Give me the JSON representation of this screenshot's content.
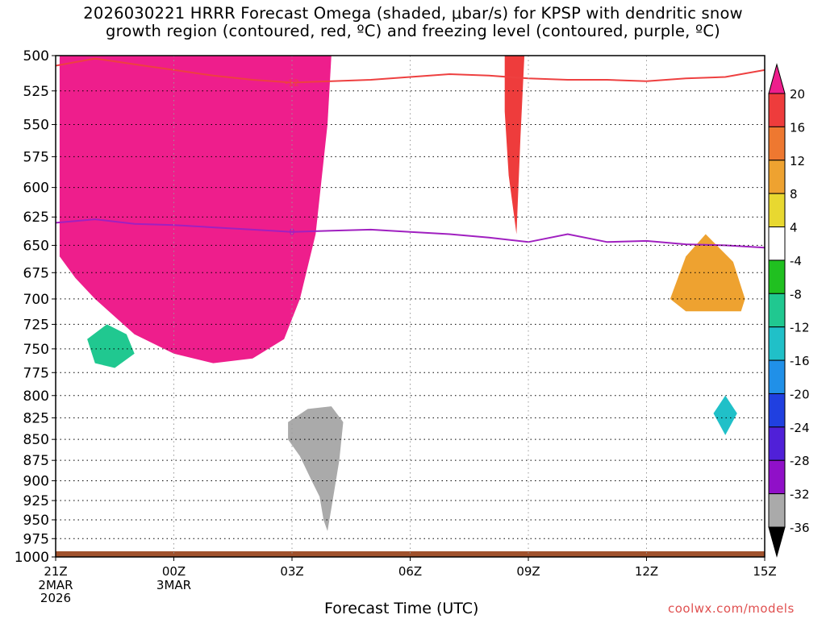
{
  "title_line1": "2026030221 HRRR Forecast Omega (shaded, μbar/s) for KPSP with dendritic snow",
  "title_line2": "growth region (contoured, red, ºC) and freezing level (contoured, purple, ºC)",
  "credit": "coolwx.com/models",
  "chart_data": {
    "type": "heatmap",
    "xlabel": "Forecast Time (UTC)",
    "ylabel": "",
    "x_ticks": [
      {
        "hour": 0,
        "label": "21Z",
        "sub": [
          "2MAR",
          "2026"
        ]
      },
      {
        "hour": 3,
        "label": "00Z",
        "sub": [
          "3MAR"
        ]
      },
      {
        "hour": 6,
        "label": "03Z",
        "sub": []
      },
      {
        "hour": 9,
        "label": "06Z",
        "sub": []
      },
      {
        "hour": 12,
        "label": "09Z",
        "sub": []
      },
      {
        "hour": 15,
        "label": "12Z",
        "sub": []
      },
      {
        "hour": 18,
        "label": "15Z",
        "sub": []
      }
    ],
    "xlim": [
      0,
      18
    ],
    "y_ticks": [
      500,
      525,
      550,
      575,
      600,
      625,
      650,
      675,
      700,
      725,
      750,
      775,
      800,
      825,
      850,
      875,
      900,
      925,
      950,
      975,
      1000
    ],
    "ylim": [
      500,
      1000
    ],
    "y_scale": "log-pressure",
    "grid": true,
    "colorbar": {
      "labels": [
        20,
        16,
        12,
        8,
        4,
        -4,
        -8,
        -12,
        -16,
        -20,
        -24,
        -28,
        -32,
        -36
      ],
      "colors": [
        "#ee1e8c",
        "#ee3c3c",
        "#ee7830",
        "#eea230",
        "#e8d830",
        "#ffffff",
        "#20c020",
        "#20c890",
        "#20c0c8",
        "#2090e8",
        "#2040e0",
        "#5020d8",
        "#9010c8",
        "#aaaaaa",
        "#000000"
      ]
    },
    "contours": [
      {
        "name": "-12",
        "color": "#ee4040",
        "points": [
          [
            0,
            507
          ],
          [
            1,
            502
          ],
          [
            2,
            506
          ],
          [
            3,
            510
          ],
          [
            4,
            514
          ],
          [
            5,
            517
          ],
          [
            6,
            519
          ],
          [
            7,
            518
          ],
          [
            8,
            517
          ],
          [
            9,
            515
          ],
          [
            10,
            513
          ],
          [
            11,
            514
          ],
          [
            12,
            516
          ],
          [
            13,
            517
          ],
          [
            14,
            517
          ],
          [
            15,
            518
          ],
          [
            16,
            516
          ],
          [
            17,
            515
          ],
          [
            18,
            510
          ]
        ]
      },
      {
        "name": "0",
        "color": "#a020c0",
        "points": [
          [
            0,
            630
          ],
          [
            1,
            627
          ],
          [
            2,
            631
          ],
          [
            3,
            632
          ],
          [
            4,
            634
          ],
          [
            5,
            636
          ],
          [
            6,
            638
          ],
          [
            7,
            637
          ],
          [
            8,
            636
          ],
          [
            9,
            638
          ],
          [
            10,
            640
          ],
          [
            11,
            643
          ],
          [
            12,
            647
          ],
          [
            13,
            640
          ],
          [
            14,
            647
          ],
          [
            15,
            646
          ],
          [
            16,
            649
          ],
          [
            17,
            650
          ],
          [
            18,
            652
          ]
        ]
      }
    ],
    "field_regions": [
      {
        "value": 20,
        "points": [
          [
            0.1,
            500
          ],
          [
            7,
            500
          ],
          [
            6.9,
            550
          ],
          [
            6.6,
            640
          ],
          [
            6.2,
            700
          ],
          [
            5.8,
            740
          ],
          [
            5,
            760
          ],
          [
            4,
            765
          ],
          [
            3,
            755
          ],
          [
            2,
            735
          ],
          [
            1,
            700
          ],
          [
            0.5,
            680
          ],
          [
            0.1,
            660
          ]
        ]
      },
      {
        "value": 16,
        "points": [
          [
            11.4,
            500
          ],
          [
            11.9,
            500
          ],
          [
            11.8,
            560
          ],
          [
            11.7,
            640
          ],
          [
            11.5,
            590
          ],
          [
            11.4,
            540
          ]
        ]
      },
      {
        "value": 8,
        "points": [
          [
            15.6,
            700
          ],
          [
            16,
            660
          ],
          [
            16.5,
            640
          ],
          [
            17.2,
            665
          ],
          [
            17.5,
            700
          ],
          [
            17.4,
            712
          ],
          [
            16,
            712
          ]
        ]
      },
      {
        "value": -12,
        "points": [
          [
            0.8,
            740
          ],
          [
            1.3,
            725
          ],
          [
            1.8,
            735
          ],
          [
            2,
            755
          ],
          [
            1.5,
            770
          ],
          [
            1,
            765
          ]
        ]
      },
      {
        "value": -16,
        "points": [
          [
            16.7,
            820
          ],
          [
            17,
            800
          ],
          [
            17.3,
            820
          ],
          [
            17,
            845
          ]
        ]
      },
      {
        "value": -36,
        "points": [
          [
            5.9,
            830
          ],
          [
            6.4,
            815
          ],
          [
            7,
            812
          ],
          [
            7.3,
            830
          ],
          [
            7.2,
            875
          ],
          [
            7,
            935
          ],
          [
            6.9,
            965
          ],
          [
            6.8,
            950
          ],
          [
            6.7,
            920
          ],
          [
            6.5,
            900
          ],
          [
            6.2,
            870
          ],
          [
            5.9,
            850
          ]
        ]
      }
    ]
  }
}
